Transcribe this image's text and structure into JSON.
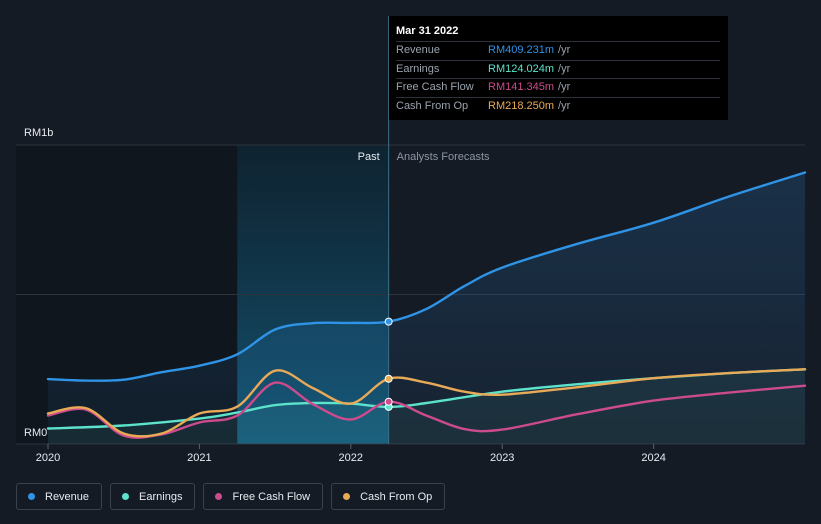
{
  "chart_data": {
    "type": "line",
    "x_ticks": [
      "2020",
      "2021",
      "2022",
      "2023",
      "2024"
    ],
    "y_ticks": [
      "RM0",
      "RM1b"
    ],
    "ylim": [
      0,
      1000
    ],
    "xlim": [
      2020.0,
      2025.0
    ],
    "divider_x": 2022.25,
    "highlight_start_x": 2021.25,
    "region_labels": {
      "past": "Past",
      "forecast": "Analysts Forecasts"
    },
    "grid": true,
    "series": [
      {
        "name": "Revenue",
        "color": "#2f93e6",
        "area": true,
        "x": [
          2020.0,
          2020.25,
          2020.5,
          2020.75,
          2021.0,
          2021.25,
          2021.5,
          2021.75,
          2022.0,
          2022.25,
          2022.5,
          2022.75,
          2023.0,
          2023.5,
          2024.0,
          2024.5,
          2025.0
        ],
        "y": [
          217,
          212,
          215,
          240,
          262,
          300,
          383,
          404,
          405,
          409.231,
          452,
          528,
          590,
          670,
          740,
          828,
          908
        ]
      },
      {
        "name": "Earnings",
        "color": "#5de3cc",
        "area": true,
        "x": [
          2020.0,
          2020.5,
          2021.0,
          2021.25,
          2021.5,
          2021.75,
          2022.0,
          2022.25,
          2022.5,
          2023.0,
          2023.5,
          2024.0,
          2024.5,
          2025.0
        ],
        "y": [
          52,
          62,
          85,
          105,
          130,
          137,
          135,
          124.024,
          137,
          175,
          200,
          220,
          237,
          250
        ]
      },
      {
        "name": "Free Cash Flow",
        "color": "#cc4b8c",
        "area": false,
        "x": [
          2020.0,
          2020.25,
          2020.5,
          2020.75,
          2021.0,
          2021.25,
          2021.5,
          2021.75,
          2022.0,
          2022.25,
          2022.5,
          2022.75,
          2023.0,
          2023.5,
          2024.0,
          2024.5,
          2025.0
        ],
        "y": [
          95,
          115,
          28,
          32,
          72,
          95,
          205,
          133,
          82,
          141.345,
          95,
          50,
          48,
          100,
          145,
          172,
          195
        ]
      },
      {
        "name": "Cash From Op",
        "color": "#e8aa56",
        "area": false,
        "x": [
          2020.0,
          2020.25,
          2020.5,
          2020.75,
          2021.0,
          2021.25,
          2021.5,
          2021.75,
          2022.0,
          2022.25,
          2022.5,
          2022.75,
          2023.0,
          2023.5,
          2024.0,
          2024.5,
          2025.0
        ],
        "y": [
          102,
          120,
          35,
          35,
          102,
          125,
          245,
          187,
          135,
          218.25,
          205,
          175,
          165,
          190,
          220,
          237,
          250
        ]
      }
    ]
  },
  "tooltip": {
    "date": "Mar 31 2022",
    "rows": [
      {
        "label": "Revenue",
        "value": "RM409.231m",
        "unit": "/yr",
        "color": "#2f93e6"
      },
      {
        "label": "Earnings",
        "value": "RM124.024m",
        "unit": "/yr",
        "color": "#5de3cc"
      },
      {
        "label": "Free Cash Flow",
        "value": "RM141.345m",
        "unit": "/yr",
        "color": "#cc4b8c"
      },
      {
        "label": "Cash From Op",
        "value": "RM218.250m",
        "unit": "/yr",
        "color": "#e8aa56"
      }
    ]
  },
  "legend": [
    {
      "label": "Revenue",
      "color": "#2f93e6"
    },
    {
      "label": "Earnings",
      "color": "#5de3cc"
    },
    {
      "label": "Free Cash Flow",
      "color": "#cc4b8c"
    },
    {
      "label": "Cash From Op",
      "color": "#e8aa56"
    }
  ]
}
